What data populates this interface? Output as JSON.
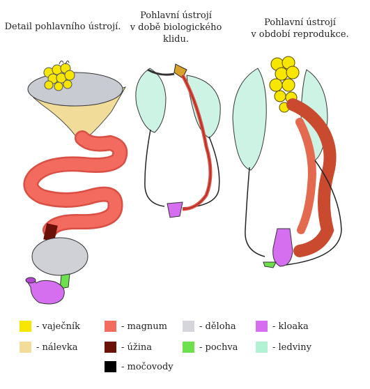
{
  "captions": {
    "detail": "Detail pohlavního ústrojí.",
    "rest": "Pohlavní ústrojí\nv době biologického\nklidu.",
    "repro": "Pohlavní ústrojí\nv období reprodukce."
  },
  "legend": [
    {
      "label": "- vaječník",
      "color": "#f7e600"
    },
    {
      "label": "- nálevka",
      "color": "#f2dc9a"
    },
    {
      "label": "- magnum",
      "color": "#f26b5e"
    },
    {
      "label": "- úžina",
      "color": "#6b1208"
    },
    {
      "label": "- močovody",
      "color": "#000000"
    },
    {
      "label": "- děloha",
      "color": "#d4d6dc"
    },
    {
      "label": "- pochva",
      "color": "#6ee04e"
    },
    {
      "label": "- kloaka",
      "color": "#d56ff0"
    },
    {
      "label": "- ledviny",
      "color": "#b2f1d4"
    }
  ]
}
